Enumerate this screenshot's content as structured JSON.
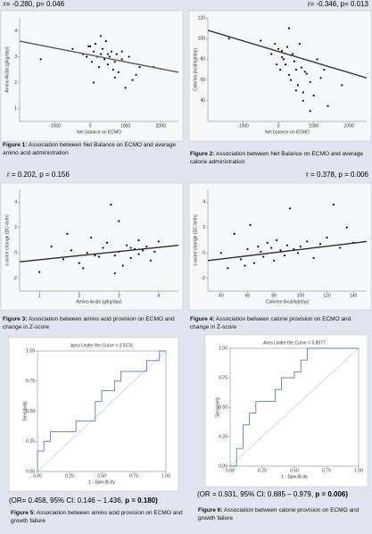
{
  "chart_data": [
    {
      "type": "scatter",
      "annotation": "r= -0.280, p= 0.046",
      "figure_label": "Figure 1:",
      "caption": "Association between Net Balance on ECMO and average amino acid administration",
      "x_label": "Net balance on ECMO",
      "y_label": "Amino Acids (g/kg/day)",
      "x": [
        -1400,
        -500,
        -200,
        -100,
        0,
        50,
        100,
        150,
        200,
        250,
        300,
        350,
        400,
        450,
        500,
        550,
        600,
        650,
        700,
        750,
        800,
        900,
        1000,
        1100,
        1200,
        1400,
        1800,
        300,
        500,
        100,
        700,
        -50,
        900,
        1300
      ],
      "values": [
        2.9,
        3.3,
        3.1,
        3.0,
        3.4,
        2.8,
        3.2,
        3.5,
        3.0,
        2.6,
        3.1,
        3.3,
        2.9,
        3.6,
        2.7,
        3.0,
        3.2,
        2.5,
        2.2,
        3.1,
        2.4,
        2.9,
        1.8,
        3.0,
        2.1,
        2.6,
        2.6,
        3.8,
        3.1,
        2.0,
        2.8,
        3.4,
        3.2,
        2.3
      ],
      "trend": {
        "x": [
          -2000,
          2500
        ],
        "y": [
          3.6,
          2.4
        ]
      },
      "color": "#111111",
      "trend_color": "#5a5a5a",
      "xlim": [
        -2000,
        2500
      ],
      "xticks": [
        -1000,
        0,
        1000,
        2000
      ],
      "ylim": [
        0.5,
        4.5
      ],
      "yticks": [
        1,
        2,
        3,
        4
      ]
    },
    {
      "type": "scatter",
      "annotation": "r= -0.346, p= 0.013",
      "figure_label": "Figure 2:",
      "caption": "Association between Net Balance on ECMO and average calorie administration",
      "x_label": "Net balance on ECMO",
      "y_label": "Calories (kcal/kg/day)",
      "x": [
        -1400,
        -500,
        -200,
        -100,
        0,
        50,
        100,
        150,
        200,
        250,
        300,
        350,
        400,
        450,
        500,
        550,
        600,
        650,
        700,
        750,
        800,
        900,
        1000,
        1100,
        1200,
        1400,
        1800,
        300,
        500,
        100,
        700,
        -50,
        900,
        1300
      ],
      "values": [
        100,
        98,
        85,
        95,
        90,
        70,
        88,
        80,
        75,
        92,
        65,
        60,
        85,
        78,
        70,
        55,
        95,
        72,
        40,
        68,
        66,
        58,
        45,
        80,
        62,
        35,
        55,
        110,
        50,
        82,
        48,
        75,
        30,
        70
      ],
      "trend": {
        "x": [
          -2000,
          2500
        ],
        "y": [
          108,
          62
        ]
      },
      "color": "#111111",
      "trend_color": "#3a3a3a",
      "xlim": [
        -2000,
        2500
      ],
      "xticks": [
        -1000,
        0,
        1000,
        2000
      ],
      "ylim": [
        20,
        120
      ],
      "yticks": [
        40,
        60,
        80,
        100,
        120
      ]
    },
    {
      "type": "scatter",
      "annotation": "r = 0.202, p = 0.156",
      "figure_label": "Figure 3:",
      "caption": "Association between amino acid provision on ECMO and change in Z-score",
      "x_label": "Amino Acids (g/kg/day)",
      "y_label": "z-score change (DC-birth)",
      "x": [
        1.0,
        1.3,
        1.6,
        1.8,
        2.0,
        2.2,
        2.3,
        2.5,
        2.6,
        2.7,
        2.8,
        2.9,
        3.0,
        3.0,
        3.1,
        3.2,
        3.3,
        3.4,
        3.5,
        3.6,
        3.7,
        3.8,
        3.9,
        4.0,
        2.4,
        2.9,
        3.3,
        2.1,
        3.5,
        1.7
      ],
      "values": [
        -1.5,
        0.5,
        -0.5,
        0.2,
        -0.8,
        0.0,
        1.2,
        -0.3,
        0.4,
        0.8,
        3.8,
        -0.2,
        0.1,
        2.5,
        -1.0,
        0.6,
        -0.4,
        0.3,
        1.0,
        0.2,
        0.5,
        -0.6,
        0.1,
        0.9,
        -0.2,
        -1.6,
        0.4,
        -1.2,
        -0.1,
        1.5
      ],
      "trend": {
        "x": [
          0.5,
          4.5
        ],
        "y": [
          -0.7,
          0.6
        ]
      },
      "color": "#111111",
      "trend_color": "#2a2a2a",
      "xlim": [
        0.5,
        4.5
      ],
      "xticks": [
        1,
        2,
        3,
        4
      ],
      "ylim": [
        -3,
        5
      ],
      "yticks": [
        -2,
        0,
        2,
        4
      ]
    },
    {
      "type": "scatter",
      "annotation": "r = 0.378, p = 0.006",
      "figure_label": "Figure 4:",
      "caption": "Association between calorie provision on ECMO and change in Z-score",
      "x_label": "Calories (kcal/kg/day)",
      "y_label": "z-score change (DC-birth)",
      "x": [
        40,
        45,
        50,
        55,
        60,
        62,
        65,
        68,
        70,
        72,
        75,
        78,
        80,
        82,
        85,
        88,
        90,
        92,
        95,
        98,
        100,
        105,
        110,
        115,
        120,
        125,
        130,
        135,
        140,
        58
      ],
      "values": [
        0.0,
        -1.2,
        1.5,
        -0.5,
        0.3,
        2.2,
        -0.8,
        0.5,
        0.1,
        -0.3,
        0.8,
        0.4,
        -0.6,
        1.0,
        0.2,
        -0.2,
        0.6,
        3.5,
        0.3,
        0.0,
        0.5,
        0.9,
        -0.4,
        0.7,
        1.2,
        3.8,
        0.4,
        2.0,
        0.8,
        -1.0
      ],
      "trend": {
        "x": [
          30,
          150
        ],
        "y": [
          -0.6,
          0.9
        ]
      },
      "color": "#111111",
      "trend_color": "#2a2a2a",
      "xlim": [
        30,
        150
      ],
      "xticks": [
        40,
        60,
        80,
        100,
        120,
        140
      ],
      "ylim": [
        -3,
        5
      ],
      "yticks": [
        -2,
        0,
        2,
        4
      ]
    },
    {
      "type": "line",
      "title": "Area Under the Curve = 0.5576",
      "annotation": "(OR= 0.458, 95% CI: 0.146 – 1.436,",
      "annotation_emphasis": "p = 0.180)",
      "figure_label": "Figure 5:",
      "caption": "Association between amino acid provision on ECMO and growth failure",
      "x_label": "1 - Specificity",
      "y_label": "Sensitivity",
      "x": [
        0,
        0,
        0.05,
        0.05,
        0.1,
        0.1,
        0.3,
        0.3,
        0.45,
        0.45,
        0.5,
        0.5,
        0.6,
        0.6,
        0.65,
        0.65,
        0.85,
        0.85,
        0.95,
        0.95,
        1
      ],
      "values": [
        0,
        0.17,
        0.17,
        0.25,
        0.25,
        0.33,
        0.33,
        0.42,
        0.42,
        0.58,
        0.58,
        0.67,
        0.67,
        0.75,
        0.75,
        0.83,
        0.83,
        0.92,
        0.92,
        1,
        1
      ],
      "color": "#5b7fb5",
      "xlim": [
        0,
        1
      ],
      "ylim": [
        0,
        1
      ],
      "xticks": [
        {
          "value": 0,
          "label": "0.00"
        },
        {
          "value": 0.25,
          "label": "0.25"
        },
        {
          "value": 0.5,
          "label": "0.50"
        },
        {
          "value": 0.75,
          "label": "0.75"
        },
        {
          "value": 1,
          "label": "1.00"
        }
      ],
      "yticks": [
        {
          "value": 0,
          "label": "0.00"
        },
        {
          "value": 0.25,
          "label": "0.25"
        },
        {
          "value": 0.5,
          "label": "0.50"
        },
        {
          "value": 0.75,
          "label": "0.75"
        },
        {
          "value": 1,
          "label": "1.00"
        }
      ]
    },
    {
      "type": "line",
      "title": "Area Under the Curve = 0.8077",
      "annotation": "(OR = 0.931, 95% CI: 0.885 – 0.979,",
      "annotation_emphasis": "p = 0.006)",
      "figure_label": "Figure 6:",
      "caption": "Association between calorie provision on ECMO and growth failure",
      "x_label": "1 - Specificity",
      "y_label": "Sensitivity",
      "x": [
        0,
        0.05,
        0.05,
        0.1,
        0.1,
        0.15,
        0.15,
        0.2,
        0.2,
        0.35,
        0.35,
        0.4,
        0.4,
        0.5,
        0.5,
        0.55,
        0.55,
        0.6,
        0.6,
        0.75,
        0.75,
        1
      ],
      "values": [
        0,
        0,
        0.15,
        0.15,
        0.35,
        0.35,
        0.45,
        0.45,
        0.55,
        0.55,
        0.65,
        0.65,
        0.75,
        0.75,
        0.8,
        0.8,
        0.9,
        0.9,
        1,
        1,
        1,
        1
      ],
      "color": "#5b7fb5",
      "xlim": [
        0,
        1
      ],
      "ylim": [
        0,
        1
      ],
      "xticks": [
        {
          "value": 0,
          "label": "0.00"
        },
        {
          "value": 0.25,
          "label": "0.25"
        },
        {
          "value": 0.5,
          "label": "0.50"
        },
        {
          "value": 0.75,
          "label": "0.75"
        },
        {
          "value": 1,
          "label": "1.00"
        }
      ],
      "yticks": [
        {
          "value": 0,
          "label": "0.00"
        },
        {
          "value": 0.25,
          "label": "0.25"
        },
        {
          "value": 0.5,
          "label": "0.50"
        },
        {
          "value": 0.75,
          "label": "0.75"
        },
        {
          "value": 1,
          "label": "1.00"
        }
      ]
    }
  ]
}
